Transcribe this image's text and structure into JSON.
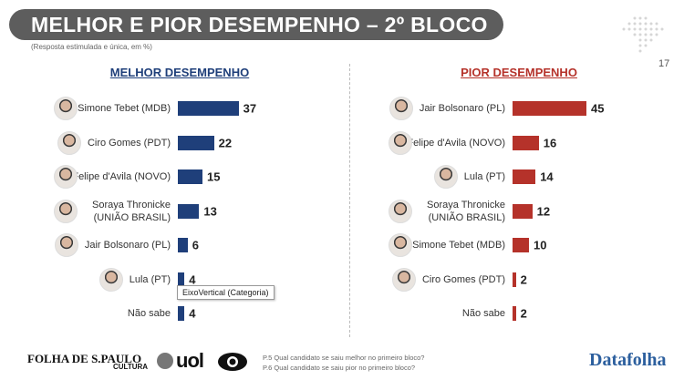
{
  "title": "MELHOR E PIOR DESEMPENHO – 2º BLOCO",
  "subtitle": "(Resposta estimulada e única, em %)",
  "page_number": "17",
  "tooltip": "EixoVertical (Categoria)",
  "footnotes": [
    "P.5 Qual candidato se saiu melhor no primeiro bloco?",
    "P.6 Qual candidato se saiu pior no primeiro bloco?"
  ],
  "logos": [
    "FOLHA DE S.PAULO",
    "CULTURA",
    "uol",
    "Datafolha"
  ],
  "chart_data": [
    {
      "type": "bar",
      "orientation": "horizontal",
      "title": "MELHOR DESEMPENHO",
      "color": "#1f3f7a",
      "categories": [
        "Simone Tebet (MDB)",
        "Ciro Gomes (PDT)",
        "Felipe d'Avila (NOVO)",
        "Soraya Thronicke (UNIÃO BRASIL)",
        "Jair Bolsonaro (PL)",
        "Lula (PT)",
        "Não sabe"
      ],
      "values": [
        37,
        22,
        15,
        13,
        6,
        4,
        4
      ]
    },
    {
      "type": "bar",
      "orientation": "horizontal",
      "title": "PIOR DESEMPENHO",
      "color": "#b5322a",
      "categories": [
        "Jair Bolsonaro (PL)",
        "Felipe d'Avila (NOVO)",
        "Lula (PT)",
        "Soraya Thronicke (UNIÃO BRASIL)",
        "Simone Tebet (MDB)",
        "Ciro Gomes (PDT)",
        "Não sabe"
      ],
      "values": [
        45,
        16,
        14,
        12,
        10,
        2,
        2
      ]
    }
  ]
}
